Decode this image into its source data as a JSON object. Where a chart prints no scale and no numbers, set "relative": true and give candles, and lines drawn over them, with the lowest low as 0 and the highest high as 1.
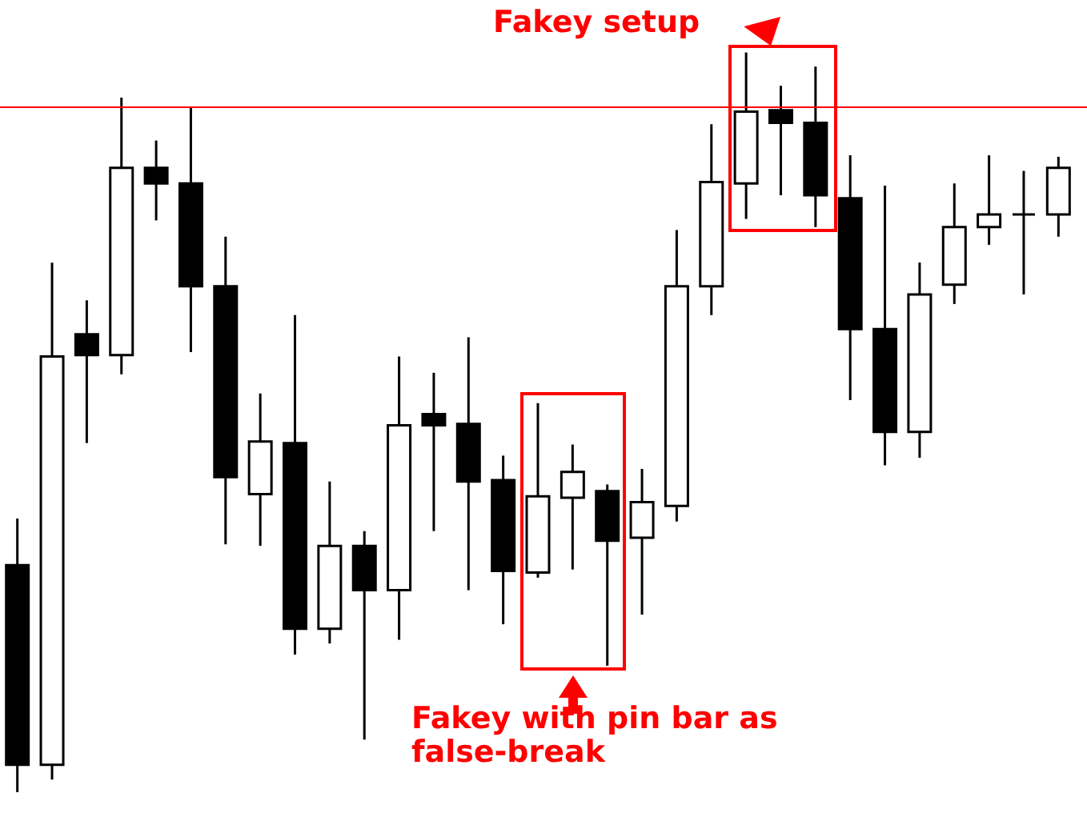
{
  "chart_data": {
    "type": "candlestick",
    "relative": true,
    "categories": [
      null,
      null,
      null,
      null,
      null,
      null,
      null,
      null,
      null,
      null,
      null,
      null,
      null,
      null,
      null,
      null,
      null,
      null,
      null,
      null,
      null,
      null,
      null,
      null,
      null,
      null,
      null,
      null,
      null,
      null,
      null
    ],
    "ohlc": [
      [
        0.307,
        0.37,
        0,
        0.037
      ],
      [
        0.037,
        0.716,
        0.017,
        0.589
      ],
      [
        0.619,
        0.665,
        0.472,
        0.591
      ],
      [
        0.591,
        0.939,
        0.565,
        0.844
      ],
      [
        0.844,
        0.881,
        0.773,
        0.823
      ],
      [
        0.823,
        0.926,
        0.595,
        0.684
      ],
      [
        0.684,
        0.751,
        0.335,
        0.426
      ],
      [
        0.403,
        0.539,
        0.333,
        0.474
      ],
      [
        0.472,
        0.645,
        0.186,
        0.221
      ],
      [
        0.221,
        0.42,
        0.201,
        0.333
      ],
      [
        0.333,
        0.353,
        0.071,
        0.273
      ],
      [
        0.273,
        0.589,
        0.206,
        0.496
      ],
      [
        0.511,
        0.567,
        0.353,
        0.496
      ],
      [
        0.498,
        0.615,
        0.273,
        0.42
      ],
      [
        0.422,
        0.455,
        0.227,
        0.299
      ],
      [
        0.297,
        0.526,
        0.29,
        0.4
      ],
      [
        0.398,
        0.47,
        0.301,
        0.433
      ],
      [
        0.407,
        0.416,
        0.171,
        0.34
      ],
      [
        0.344,
        0.437,
        0.24,
        0.392
      ],
      [
        0.387,
        0.76,
        0.366,
        0.684
      ],
      [
        0.684,
        0.903,
        0.645,
        0.825
      ],
      [
        0.823,
        1,
        0.775,
        0.92
      ],
      [
        0.922,
        0.955,
        0.807,
        0.905
      ],
      [
        0.905,
        0.981,
        0.764,
        0.807
      ],
      [
        0.803,
        0.861,
        0.53,
        0.626
      ],
      [
        0.626,
        0.82,
        0.442,
        0.487
      ],
      [
        0.487,
        0.716,
        0.452,
        0.673
      ],
      [
        0.686,
        0.823,
        0.66,
        0.764
      ],
      [
        0.764,
        0.861,
        0.74,
        0.781
      ],
      [
        0.781,
        0.84,
        0.673,
        0.781
      ],
      [
        0.781,
        0.859,
        0.751,
        0.844
      ]
    ],
    "ref_lines": [
      {
        "axis": "y",
        "value": 0.926,
        "color": "#ff0000"
      }
    ],
    "annotations": [
      "Fakey setup",
      "Fakey with pin bar as false-break"
    ]
  }
}
